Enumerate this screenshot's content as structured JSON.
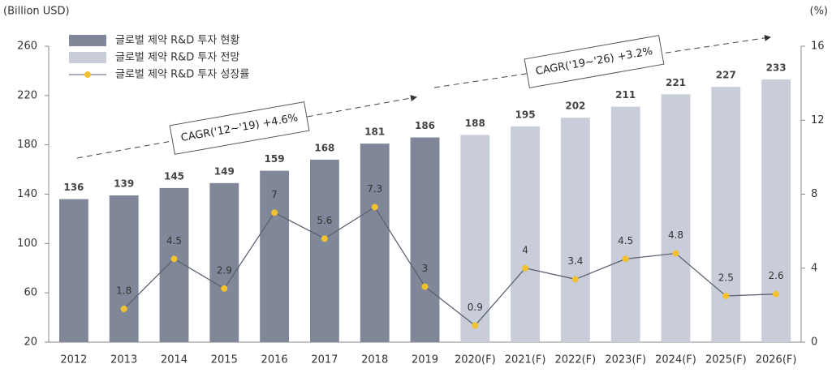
{
  "chart_data": {
    "type": "bar",
    "y_axis_label": "(Billion USD)",
    "y2_axis_label": "(%)",
    "categories": [
      "2012",
      "2013",
      "2014",
      "2015",
      "2016",
      "2017",
      "2018",
      "2019",
      "2020(F)",
      "2021(F)",
      "2022(F)",
      "2023(F)",
      "2024(F)",
      "2025(F)",
      "2026(F)"
    ],
    "series": [
      {
        "name": "글로벌 제약 R&D 투자 현황",
        "type": "bar",
        "color": "#7f8798",
        "values": [
          136,
          139,
          145,
          149,
          159,
          168,
          181,
          186,
          null,
          null,
          null,
          null,
          null,
          null,
          null
        ]
      },
      {
        "name": "글로벌 제약 R&D 투자 전망",
        "type": "bar",
        "color": "#c9cdd9",
        "values": [
          null,
          null,
          null,
          null,
          null,
          null,
          null,
          null,
          188,
          195,
          202,
          211,
          221,
          227,
          233
        ]
      },
      {
        "name": "글로벌 제약 R&D 투자 성장률",
        "type": "line",
        "axis": "y2",
        "color": "#5b6272",
        "marker_color": "#f2c12e",
        "values": [
          null,
          1.8,
          4.5,
          2.9,
          7,
          5.6,
          7.3,
          3,
          0.9,
          4,
          3.4,
          4.5,
          4.8,
          2.5,
          2.6
        ]
      }
    ],
    "ylim": [
      20,
      260
    ],
    "yticks": [
      20,
      60,
      100,
      140,
      180,
      220,
      260
    ],
    "y2lim": [
      0,
      16
    ],
    "y2ticks": [
      0,
      4,
      8,
      12,
      16
    ],
    "annotations": [
      "CAGR('12~'19) +4.6%",
      "CAGR('19~'26) +3.2%"
    ]
  }
}
